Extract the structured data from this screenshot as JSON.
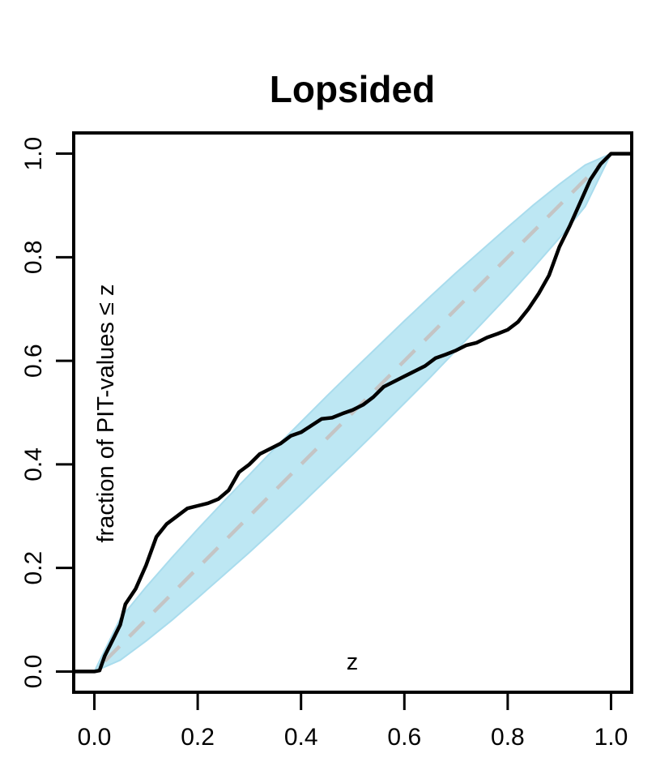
{
  "chart_data": {
    "type": "line",
    "title": "Lopsided",
    "xlabel": "z",
    "ylabel": "fraction of PIT-values ≤ z",
    "xlim": [
      -0.04,
      1.04
    ],
    "ylim": [
      -0.04,
      1.04
    ],
    "xticks": [
      0.0,
      0.2,
      0.4,
      0.6,
      0.8,
      1.0
    ],
    "yticks": [
      0.0,
      0.2,
      0.4,
      0.6,
      0.8,
      1.0
    ],
    "xtick_labels": [
      "0.0",
      "0.2",
      "0.4",
      "0.6",
      "0.8",
      "1.0"
    ],
    "ytick_labels": [
      "0.0",
      "0.2",
      "0.4",
      "0.6",
      "0.8",
      "1.0"
    ],
    "grid": false,
    "colors": {
      "band": "#bde7f3",
      "band_edge": "#a9dced",
      "reference": "#c4c4c4",
      "ecdf": "#000000"
    },
    "band": {
      "x": [
        0.0,
        0.05,
        0.1,
        0.15,
        0.2,
        0.25,
        0.3,
        0.35,
        0.4,
        0.45,
        0.5,
        0.55,
        0.6,
        0.65,
        0.7,
        0.75,
        0.8,
        0.85,
        0.9,
        0.95,
        1.0
      ],
      "lower": [
        0.0,
        0.022,
        0.059,
        0.099,
        0.142,
        0.186,
        0.23,
        0.276,
        0.323,
        0.371,
        0.419,
        0.468,
        0.518,
        0.568,
        0.62,
        0.672,
        0.725,
        0.78,
        0.837,
        0.898,
        1.0
      ],
      "upper": [
        0.0,
        0.102,
        0.163,
        0.22,
        0.275,
        0.328,
        0.38,
        0.432,
        0.482,
        0.532,
        0.581,
        0.629,
        0.677,
        0.724,
        0.77,
        0.814,
        0.858,
        0.901,
        0.941,
        0.978,
        1.0
      ]
    },
    "series": [
      {
        "x": [
          -0.04,
          0.0,
          0.01,
          0.02,
          0.03,
          0.05,
          0.06,
          0.08,
          0.1,
          0.12,
          0.14,
          0.16,
          0.18,
          0.2,
          0.22,
          0.24,
          0.26,
          0.28,
          0.3,
          0.32,
          0.34,
          0.36,
          0.38,
          0.4,
          0.42,
          0.44,
          0.46,
          0.48,
          0.5,
          0.52,
          0.54,
          0.56,
          0.58,
          0.6,
          0.62,
          0.64,
          0.66,
          0.68,
          0.7,
          0.72,
          0.74,
          0.76,
          0.78,
          0.8,
          0.82,
          0.84,
          0.86,
          0.88,
          0.9,
          0.92,
          0.94,
          0.96,
          0.98,
          1.0,
          1.04
        ],
        "y": [
          0.0,
          0.0,
          0.002,
          0.03,
          0.05,
          0.09,
          0.13,
          0.16,
          0.205,
          0.26,
          0.285,
          0.3,
          0.315,
          0.32,
          0.325,
          0.333,
          0.35,
          0.385,
          0.4,
          0.42,
          0.43,
          0.44,
          0.455,
          0.462,
          0.475,
          0.488,
          0.49,
          0.498,
          0.505,
          0.515,
          0.53,
          0.55,
          0.56,
          0.57,
          0.58,
          0.59,
          0.605,
          0.612,
          0.62,
          0.63,
          0.635,
          0.645,
          0.652,
          0.66,
          0.675,
          0.7,
          0.73,
          0.765,
          0.82,
          0.86,
          0.905,
          0.95,
          0.98,
          1.0,
          1.0
        ]
      }
    ]
  }
}
